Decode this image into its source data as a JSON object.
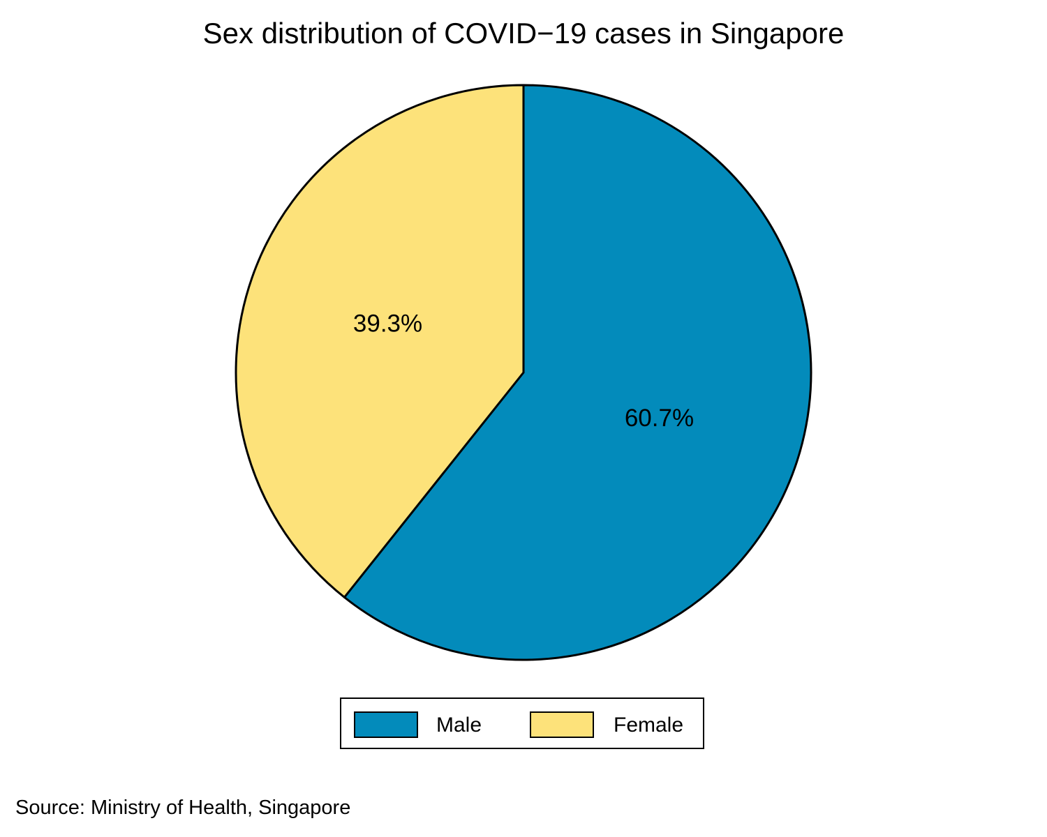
{
  "chart_data": {
    "type": "pie",
    "title": "Sex distribution of COVID−19 cases in Singapore",
    "slices": [
      {
        "label": "Male",
        "value": 60.7,
        "display": "60.7%",
        "color": "#038bbb"
      },
      {
        "label": "Female",
        "value": 39.3,
        "display": "39.3%",
        "color": "#fde27a"
      }
    ],
    "start_angle_deg": 0,
    "direction": "clockwise",
    "legend_position": "bottom",
    "source": "Source: Ministry of Health, Singapore"
  }
}
